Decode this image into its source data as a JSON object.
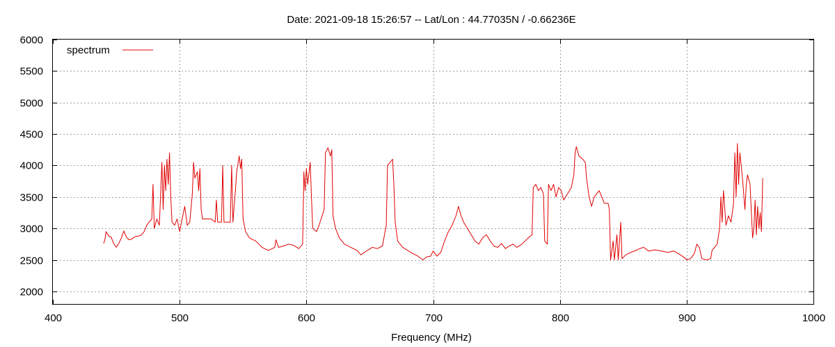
{
  "chart_data": {
    "type": "line",
    "title": "Date: 2021-09-18 15:26:57  --  Lat/Lon : 44.77035N / -0.66236E",
    "xlabel": "Frequency (MHz)",
    "ylabel": "",
    "xlim": [
      400,
      1000
    ],
    "ylim": [
      1800,
      6000
    ],
    "x_ticks": [
      "400",
      "500",
      "600",
      "700",
      "800",
      "900",
      "1000"
    ],
    "y_ticks": [
      "2000",
      "2500",
      "3000",
      "3500",
      "4000",
      "4500",
      "5000",
      "5500",
      "6000"
    ],
    "grid": true,
    "legend": "top-left",
    "color": "#e00000",
    "series": [
      {
        "name": "spectrum",
        "points": [
          [
            440,
            2760
          ],
          [
            441,
            2820
          ],
          [
            442,
            2950
          ],
          [
            444,
            2880
          ],
          [
            446,
            2860
          ],
          [
            448,
            2760
          ],
          [
            450,
            2700
          ],
          [
            452,
            2760
          ],
          [
            454,
            2850
          ],
          [
            456,
            2960
          ],
          [
            458,
            2860
          ],
          [
            460,
            2820
          ],
          [
            462,
            2830
          ],
          [
            465,
            2870
          ],
          [
            468,
            2880
          ],
          [
            470,
            2900
          ],
          [
            472,
            2950
          ],
          [
            474,
            3050
          ],
          [
            476,
            3100
          ],
          [
            478,
            3150
          ],
          [
            479,
            3700
          ],
          [
            480,
            3000
          ],
          [
            482,
            3150
          ],
          [
            484,
            3050
          ],
          [
            486,
            4050
          ],
          [
            487,
            3300
          ],
          [
            488,
            4000
          ],
          [
            489,
            3600
          ],
          [
            490,
            4100
          ],
          [
            491,
            3700
          ],
          [
            492,
            4200
          ],
          [
            493,
            3500
          ],
          [
            494,
            3100
          ],
          [
            496,
            3050
          ],
          [
            498,
            3150
          ],
          [
            500,
            2950
          ],
          [
            502,
            3150
          ],
          [
            504,
            3350
          ],
          [
            506,
            3050
          ],
          [
            508,
            3100
          ],
          [
            510,
            3550
          ],
          [
            511,
            4050
          ],
          [
            512,
            3800
          ],
          [
            514,
            3900
          ],
          [
            515,
            3600
          ],
          [
            516,
            3950
          ],
          [
            517,
            3300
          ],
          [
            518,
            3150
          ],
          [
            520,
            3150
          ],
          [
            525,
            3150
          ],
          [
            528,
            3100
          ],
          [
            529,
            3450
          ],
          [
            530,
            3100
          ],
          [
            533,
            3100
          ],
          [
            534,
            4000
          ],
          [
            535,
            3100
          ],
          [
            540,
            3100
          ],
          [
            541,
            4000
          ],
          [
            542,
            3100
          ],
          [
            544,
            3600
          ],
          [
            545,
            3900
          ],
          [
            547,
            4150
          ],
          [
            548,
            3950
          ],
          [
            549,
            4100
          ],
          [
            550,
            3150
          ],
          [
            552,
            2950
          ],
          [
            555,
            2850
          ],
          [
            560,
            2800
          ],
          [
            565,
            2700
          ],
          [
            570,
            2650
          ],
          [
            575,
            2700
          ],
          [
            576,
            2820
          ],
          [
            578,
            2700
          ],
          [
            582,
            2720
          ],
          [
            586,
            2750
          ],
          [
            590,
            2730
          ],
          [
            594,
            2680
          ],
          [
            597,
            2750
          ],
          [
            598,
            3900
          ],
          [
            599,
            3600
          ],
          [
            600,
            3950
          ],
          [
            601,
            3700
          ],
          [
            603,
            4050
          ],
          [
            604,
            3500
          ],
          [
            605,
            3000
          ],
          [
            608,
            2950
          ],
          [
            610,
            3050
          ],
          [
            614,
            3300
          ],
          [
            615,
            4200
          ],
          [
            617,
            4280
          ],
          [
            619,
            4150
          ],
          [
            620,
            4250
          ],
          [
            621,
            3200
          ],
          [
            623,
            3000
          ],
          [
            626,
            2850
          ],
          [
            630,
            2750
          ],
          [
            635,
            2700
          ],
          [
            640,
            2650
          ],
          [
            643,
            2580
          ],
          [
            648,
            2650
          ],
          [
            652,
            2700
          ],
          [
            656,
            2680
          ],
          [
            660,
            2720
          ],
          [
            663,
            3050
          ],
          [
            664,
            4000
          ],
          [
            666,
            4050
          ],
          [
            668,
            4100
          ],
          [
            669,
            3700
          ],
          [
            670,
            3100
          ],
          [
            672,
            2800
          ],
          [
            676,
            2700
          ],
          [
            680,
            2650
          ],
          [
            684,
            2600
          ],
          [
            688,
            2560
          ],
          [
            692,
            2500
          ],
          [
            695,
            2550
          ],
          [
            698,
            2560
          ],
          [
            700,
            2640
          ],
          [
            703,
            2560
          ],
          [
            706,
            2620
          ],
          [
            709,
            2800
          ],
          [
            712,
            2950
          ],
          [
            715,
            3050
          ],
          [
            718,
            3200
          ],
          [
            720,
            3350
          ],
          [
            722,
            3200
          ],
          [
            724,
            3100
          ],
          [
            727,
            3000
          ],
          [
            730,
            2900
          ],
          [
            733,
            2800
          ],
          [
            736,
            2750
          ],
          [
            739,
            2850
          ],
          [
            742,
            2900
          ],
          [
            745,
            2800
          ],
          [
            748,
            2720
          ],
          [
            751,
            2700
          ],
          [
            754,
            2760
          ],
          [
            757,
            2680
          ],
          [
            760,
            2720
          ],
          [
            763,
            2750
          ],
          [
            766,
            2700
          ],
          [
            770,
            2750
          ],
          [
            775,
            2850
          ],
          [
            778,
            2900
          ],
          [
            779,
            3650
          ],
          [
            781,
            3700
          ],
          [
            783,
            3600
          ],
          [
            785,
            3650
          ],
          [
            787,
            3550
          ],
          [
            788,
            2800
          ],
          [
            790,
            2750
          ],
          [
            791,
            3700
          ],
          [
            793,
            3600
          ],
          [
            795,
            3700
          ],
          [
            797,
            3500
          ],
          [
            799,
            3650
          ],
          [
            801,
            3600
          ],
          [
            803,
            3450
          ],
          [
            806,
            3550
          ],
          [
            809,
            3650
          ],
          [
            811,
            3850
          ],
          [
            812,
            4200
          ],
          [
            813,
            4300
          ],
          [
            815,
            4150
          ],
          [
            818,
            4100
          ],
          [
            820,
            4050
          ],
          [
            821,
            3800
          ],
          [
            823,
            3500
          ],
          [
            825,
            3350
          ],
          [
            827,
            3500
          ],
          [
            829,
            3550
          ],
          [
            831,
            3600
          ],
          [
            833,
            3500
          ],
          [
            835,
            3400
          ],
          [
            838,
            3400
          ],
          [
            839,
            3300
          ],
          [
            840,
            2500
          ],
          [
            842,
            2800
          ],
          [
            843,
            2500
          ],
          [
            845,
            2900
          ],
          [
            846,
            2500
          ],
          [
            848,
            3100
          ],
          [
            849,
            2520
          ],
          [
            852,
            2580
          ],
          [
            856,
            2620
          ],
          [
            860,
            2650
          ],
          [
            863,
            2680
          ],
          [
            866,
            2700
          ],
          [
            870,
            2640
          ],
          [
            875,
            2660
          ],
          [
            880,
            2640
          ],
          [
            885,
            2620
          ],
          [
            890,
            2640
          ],
          [
            895,
            2580
          ],
          [
            898,
            2540
          ],
          [
            900,
            2500
          ],
          [
            903,
            2520
          ],
          [
            906,
            2600
          ],
          [
            908,
            2750
          ],
          [
            910,
            2700
          ],
          [
            912,
            2520
          ],
          [
            916,
            2500
          ],
          [
            919,
            2520
          ],
          [
            920,
            2650
          ],
          [
            922,
            2700
          ],
          [
            924,
            2750
          ],
          [
            926,
            3000
          ],
          [
            927,
            3500
          ],
          [
            928,
            3100
          ],
          [
            929,
            3600
          ],
          [
            931,
            3050
          ],
          [
            933,
            3200
          ],
          [
            935,
            3100
          ],
          [
            937,
            3400
          ],
          [
            938,
            4200
          ],
          [
            939,
            3500
          ],
          [
            940,
            4350
          ],
          [
            941,
            3700
          ],
          [
            942,
            4200
          ],
          [
            944,
            3800
          ],
          [
            946,
            3300
          ],
          [
            947,
            3700
          ],
          [
            948,
            3850
          ],
          [
            950,
            3700
          ],
          [
            952,
            2850
          ],
          [
            953,
            3000
          ],
          [
            954,
            3450
          ],
          [
            955,
            2900
          ],
          [
            956,
            3350
          ],
          [
            957,
            3000
          ],
          [
            958,
            3250
          ],
          [
            959,
            2950
          ],
          [
            960,
            3800
          ]
        ]
      }
    ]
  }
}
